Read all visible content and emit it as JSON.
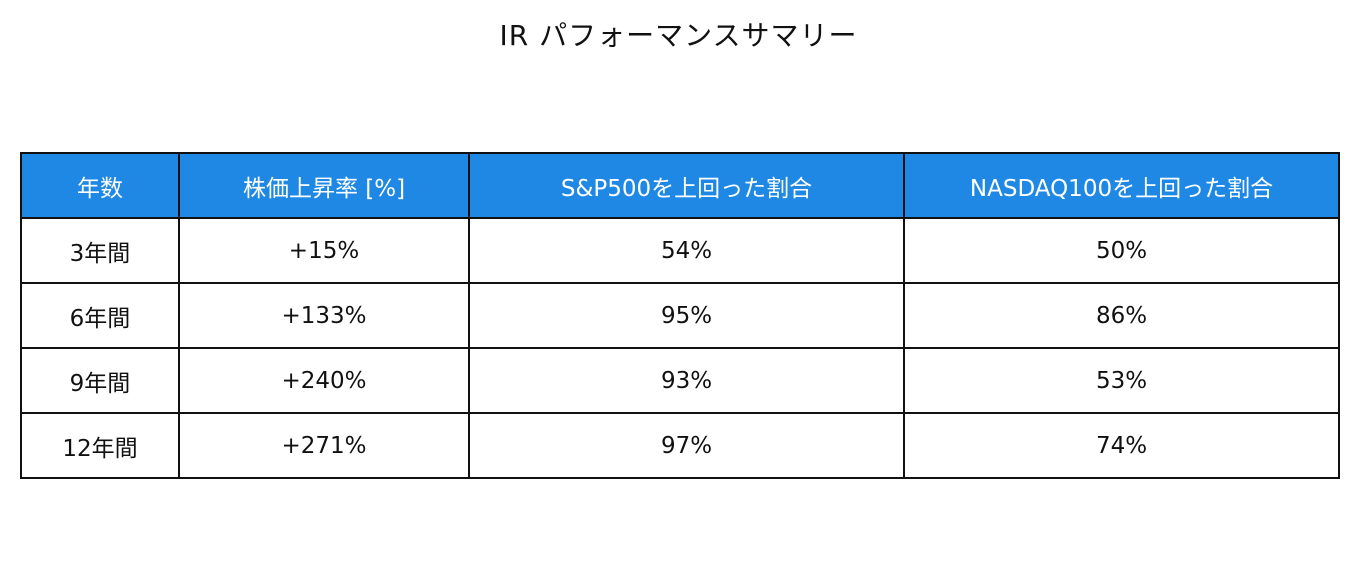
{
  "title": "IR パフォーマンスサマリー",
  "table": {
    "headers": [
      "年数",
      "株価上昇率 [%]",
      "S&P500を上回った割合",
      "NASDAQ100を上回った割合"
    ],
    "rows": [
      [
        "3年間",
        "+15%",
        "54%",
        "50%"
      ],
      [
        "6年間",
        "+133%",
        "95%",
        "86%"
      ],
      [
        "9年間",
        "+240%",
        "93%",
        "53%"
      ],
      [
        "12年間",
        "+271%",
        "97%",
        "74%"
      ]
    ]
  }
}
